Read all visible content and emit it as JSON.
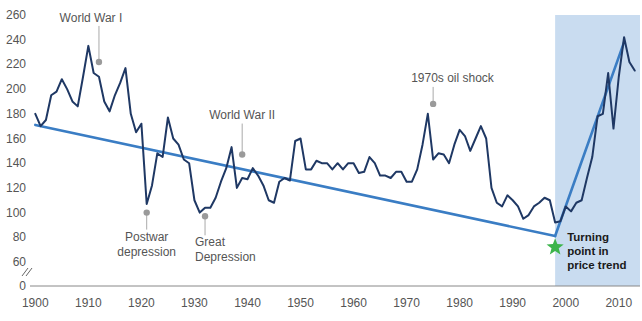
{
  "chart_data": {
    "type": "line",
    "x": [
      1900,
      1901,
      1902,
      1903,
      1904,
      1905,
      1906,
      1907,
      1908,
      1909,
      1910,
      1911,
      1912,
      1913,
      1914,
      1915,
      1916,
      1917,
      1918,
      1919,
      1920,
      1921,
      1922,
      1923,
      1924,
      1925,
      1926,
      1927,
      1928,
      1929,
      1930,
      1931,
      1932,
      1933,
      1934,
      1935,
      1936,
      1937,
      1938,
      1939,
      1940,
      1941,
      1942,
      1943,
      1944,
      1945,
      1946,
      1947,
      1948,
      1949,
      1950,
      1951,
      1952,
      1953,
      1954,
      1955,
      1956,
      1957,
      1958,
      1959,
      1960,
      1961,
      1962,
      1963,
      1964,
      1965,
      1966,
      1967,
      1968,
      1969,
      1970,
      1971,
      1972,
      1973,
      1974,
      1975,
      1976,
      1977,
      1978,
      1979,
      1980,
      1981,
      1982,
      1983,
      1984,
      1985,
      1986,
      1987,
      1988,
      1989,
      1990,
      1991,
      1992,
      1993,
      1994,
      1995,
      1996,
      1997,
      1998,
      1999,
      2000,
      2001,
      2002,
      2003,
      2004,
      2005,
      2006,
      2007,
      2008,
      2009,
      2010,
      2011,
      2012,
      2013
    ],
    "series": [
      {
        "color": "#1f3864",
        "values": [
          180,
          170,
          175,
          195,
          198,
          208,
          200,
          190,
          186,
          210,
          235,
          213,
          210,
          190,
          182,
          195,
          205,
          217,
          180,
          165,
          172,
          107,
          122,
          148,
          145,
          177,
          160,
          155,
          143,
          140,
          110,
          100,
          104,
          104,
          112,
          125,
          136,
          153,
          120,
          128,
          127,
          136,
          130,
          122,
          110,
          108,
          125,
          128,
          126,
          158,
          160,
          135,
          135,
          142,
          140,
          140,
          135,
          140,
          135,
          140,
          140,
          132,
          133,
          145,
          140,
          130,
          130,
          128,
          133,
          133,
          125,
          125,
          135,
          155,
          180,
          143,
          148,
          147,
          140,
          155,
          167,
          162,
          150,
          160,
          170,
          160,
          120,
          108,
          105,
          114,
          110,
          105,
          95,
          98,
          105,
          108,
          112,
          110,
          92,
          93,
          105,
          101,
          108,
          110,
          128,
          145,
          178,
          180,
          213,
          168,
          210,
          242,
          222,
          215
        ]
      },
      {
        "color": "#3a7dc4",
        "x": [
          1900,
          1998
        ],
        "values": [
          171,
          81
        ]
      },
      {
        "color": "#3a7dc4",
        "x": [
          1998,
          2011
        ],
        "values": [
          81,
          238
        ]
      }
    ],
    "xlim": [
      1899,
      2014
    ],
    "xticks": [
      1900,
      1910,
      1920,
      1930,
      1940,
      1950,
      1960,
      1970,
      1980,
      1990,
      2000,
      2010
    ],
    "ylim": [
      0,
      260
    ],
    "yticks": [
      0,
      60,
      80,
      100,
      120,
      140,
      160,
      180,
      200,
      220,
      240,
      260
    ],
    "grid": false,
    "shaded_x": [
      1998,
      2014
    ],
    "annotations": [
      {
        "text": [
          "World War I"
        ],
        "x": 1912,
        "y": 222
      },
      {
        "text": [
          "Postwar",
          "depression"
        ],
        "x": 1921,
        "y": 100
      },
      {
        "text": [
          "Great",
          "Depression"
        ],
        "x": 1932,
        "y": 97
      },
      {
        "text": [
          "World War II"
        ],
        "x": 1939,
        "y": 147
      },
      {
        "text": [
          "1970s oil shock"
        ],
        "x": 1975,
        "y": 188
      },
      {
        "text": [
          "Turning",
          "point in",
          "price trend"
        ],
        "x": 1998,
        "y": 72,
        "marker": "star",
        "color": "#3cb44b"
      }
    ]
  }
}
